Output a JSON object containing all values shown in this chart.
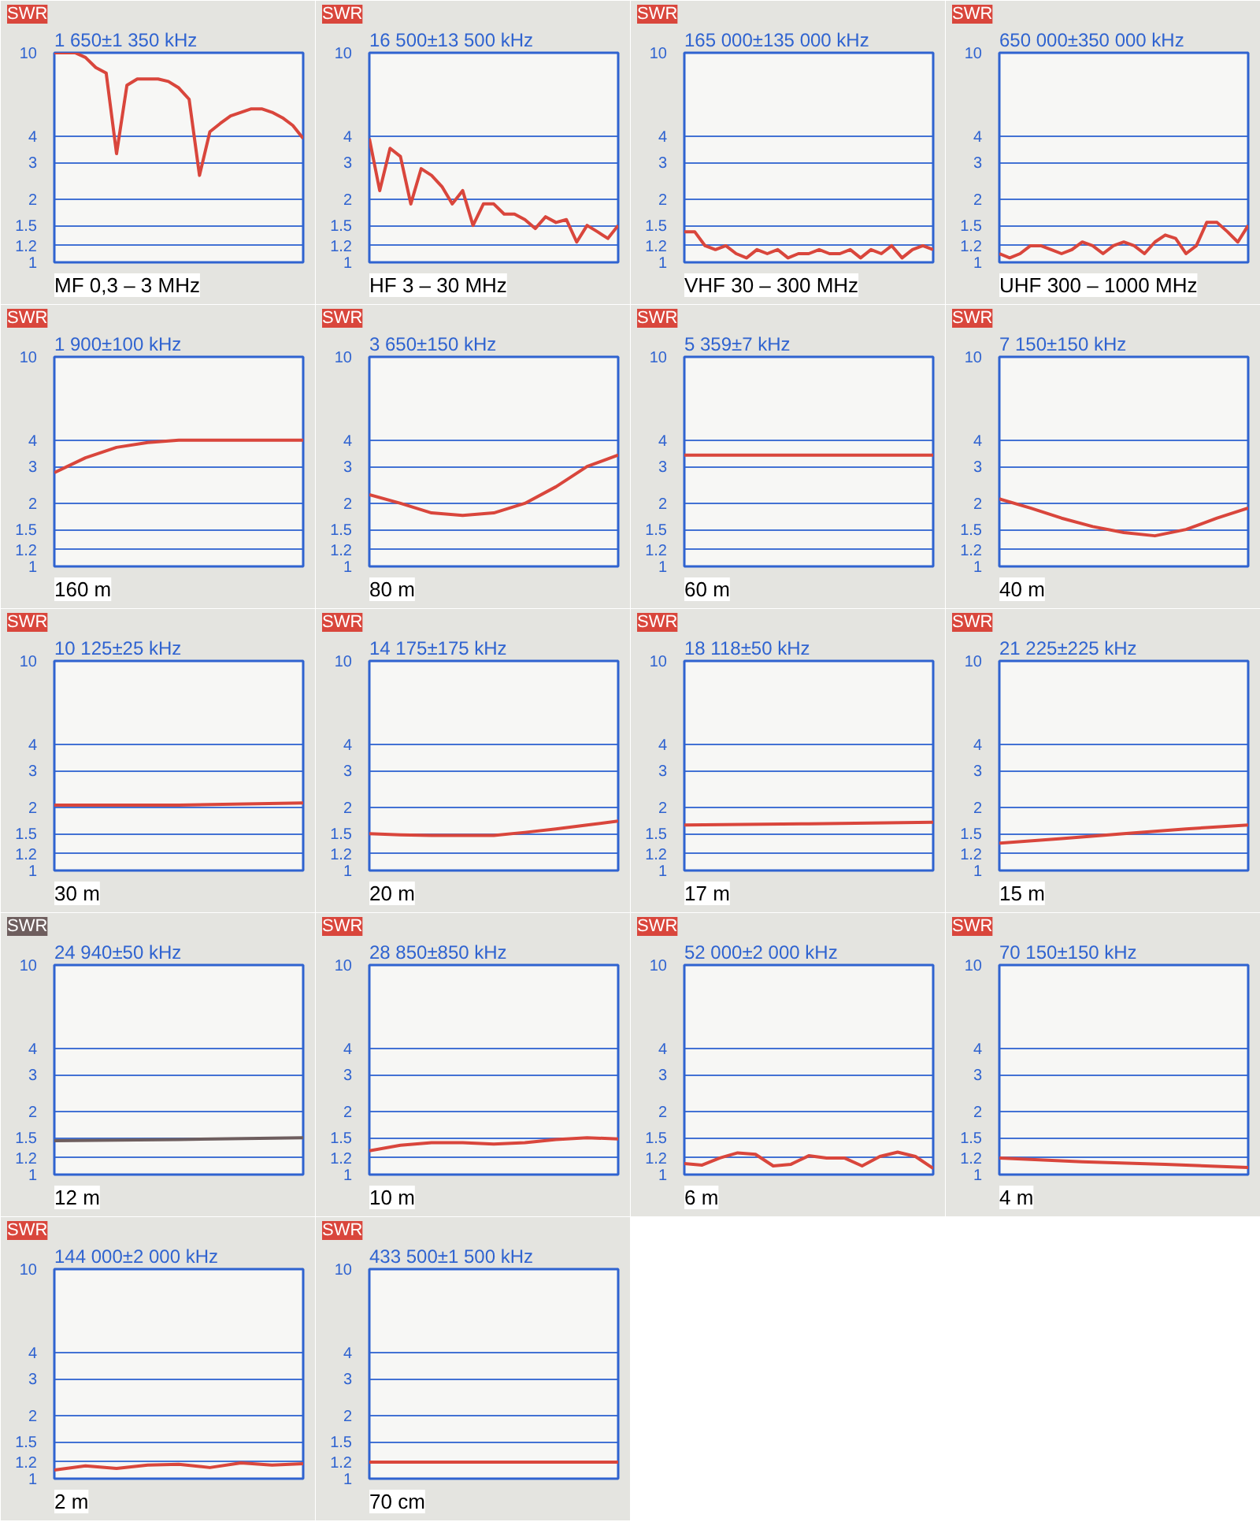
{
  "chart_data": [
    {
      "type": "line",
      "title": "1 650±1 350 kHz",
      "ylabel": "SWR",
      "annotations": [
        "MF 0,3 – 3 MHz"
      ],
      "categories": [
        null,
        null,
        null,
        null,
        null,
        null,
        null,
        null,
        null,
        null,
        null,
        null,
        null,
        null,
        null,
        null,
        null,
        null,
        null,
        null,
        null,
        null,
        null,
        null,
        null
      ],
      "series": [
        {
          "color": "#d9463c",
          "values": [
            10,
            10,
            10,
            9.5,
            8.5,
            8,
            3.3,
            7,
            7.5,
            7.5,
            7.5,
            7.3,
            6.8,
            6,
            2.6,
            4.2,
            4.6,
            5,
            5.2,
            5.4,
            5.4,
            5.2,
            4.9,
            4.5,
            3.9
          ]
        }
      ],
      "ylim": [
        1,
        10
      ],
      "yticks": [
        1,
        1.2,
        1.5,
        2,
        3,
        4,
        10
      ],
      "grid": "y",
      "tick_labels": "y",
      "log": true
    },
    {
      "type": "line",
      "title": "16 500±13 500 kHz",
      "ylabel": "SWR",
      "annotations": [
        "HF 3 – 30 MHz"
      ],
      "categories": [
        null,
        null,
        null,
        null,
        null,
        null,
        null,
        null,
        null,
        null,
        null,
        null,
        null,
        null,
        null,
        null,
        null,
        null,
        null,
        null,
        null,
        null,
        null,
        null,
        null
      ],
      "series": [
        {
          "color": "#d9463c",
          "values": [
            3.9,
            2.2,
            3.5,
            3.2,
            1.9,
            2.8,
            2.6,
            2.3,
            1.9,
            2.2,
            1.5,
            1.9,
            1.9,
            1.7,
            1.7,
            1.6,
            1.45,
            1.65,
            1.55,
            1.6,
            1.25,
            1.5,
            1.4,
            1.3,
            1.5
          ]
        }
      ],
      "ylim": [
        1,
        10
      ],
      "yticks": [
        1,
        1.2,
        1.5,
        2,
        3,
        4,
        10
      ],
      "grid": "y",
      "tick_labels": "y",
      "log": true
    },
    {
      "type": "line",
      "title": "165 000±135 000 kHz",
      "ylabel": "SWR",
      "annotations": [
        "VHF 30 – 300 MHz"
      ],
      "categories": [
        null,
        null,
        null,
        null,
        null,
        null,
        null,
        null,
        null,
        null,
        null,
        null,
        null,
        null,
        null,
        null,
        null,
        null,
        null,
        null,
        null,
        null,
        null,
        null,
        null
      ],
      "series": [
        {
          "color": "#d9463c",
          "values": [
            1.4,
            1.4,
            1.2,
            1.15,
            1.2,
            1.1,
            1.05,
            1.15,
            1.1,
            1.15,
            1.05,
            1.1,
            1.1,
            1.15,
            1.1,
            1.1,
            1.15,
            1.05,
            1.15,
            1.1,
            1.2,
            1.05,
            1.15,
            1.2,
            1.15
          ]
        }
      ],
      "ylim": [
        1,
        10
      ],
      "yticks": [
        1,
        1.2,
        1.5,
        2,
        3,
        4,
        10
      ],
      "grid": "y",
      "tick_labels": "y",
      "log": true
    },
    {
      "type": "line",
      "title": "650 000±350 000 kHz",
      "ylabel": "SWR",
      "annotations": [
        "UHF 300 – 1000 MHz"
      ],
      "categories": [
        null,
        null,
        null,
        null,
        null,
        null,
        null,
        null,
        null,
        null,
        null,
        null,
        null,
        null,
        null,
        null,
        null,
        null,
        null,
        null,
        null,
        null,
        null,
        null,
        null
      ],
      "series": [
        {
          "color": "#d9463c",
          "values": [
            1.1,
            1.05,
            1.1,
            1.2,
            1.2,
            1.15,
            1.1,
            1.15,
            1.25,
            1.2,
            1.1,
            1.2,
            1.25,
            1.2,
            1.1,
            1.25,
            1.35,
            1.3,
            1.1,
            1.2,
            1.55,
            1.55,
            1.4,
            1.25,
            1.5
          ]
        }
      ],
      "ylim": [
        1,
        10
      ],
      "yticks": [
        1,
        1.2,
        1.5,
        2,
        3,
        4,
        10
      ],
      "grid": "y",
      "tick_labels": "y",
      "log": true
    },
    {
      "type": "line",
      "title": "1 900±100 kHz",
      "ylabel": "SWR",
      "annotations": [
        "160 m"
      ],
      "categories": [
        null,
        null,
        null,
        null,
        null,
        null,
        null,
        null,
        null
      ],
      "series": [
        {
          "color": "#d9463c",
          "values": [
            2.8,
            3.3,
            3.7,
            3.9,
            4,
            4,
            4,
            4,
            4
          ]
        }
      ],
      "ylim": [
        1,
        10
      ],
      "yticks": [
        1,
        1.2,
        1.5,
        2,
        3,
        4,
        10
      ],
      "grid": "y",
      "tick_labels": "y",
      "log": true
    },
    {
      "type": "line",
      "title": "3 650±150 kHz",
      "ylabel": "SWR",
      "annotations": [
        "80 m"
      ],
      "categories": [
        null,
        null,
        null,
        null,
        null,
        null,
        null,
        null,
        null
      ],
      "series": [
        {
          "color": "#d9463c",
          "values": [
            2.2,
            2,
            1.8,
            1.75,
            1.8,
            2,
            2.4,
            3,
            3.4
          ]
        }
      ],
      "ylim": [
        1,
        10
      ],
      "yticks": [
        1,
        1.2,
        1.5,
        2,
        3,
        4,
        10
      ],
      "grid": "y",
      "tick_labels": "y",
      "log": true
    },
    {
      "type": "line",
      "title": "5 359±7 kHz",
      "ylabel": "SWR",
      "annotations": [
        "60 m"
      ],
      "categories": [
        null,
        null,
        null
      ],
      "series": [
        {
          "color": "#d9463c",
          "values": [
            3.4,
            3.4,
            3.4
          ]
        }
      ],
      "ylim": [
        1,
        10
      ],
      "yticks": [
        1,
        1.2,
        1.5,
        2,
        3,
        4,
        10
      ],
      "grid": "y",
      "tick_labels": "y",
      "log": true
    },
    {
      "type": "line",
      "title": "7 150±150 kHz",
      "ylabel": "SWR",
      "annotations": [
        "40 m"
      ],
      "categories": [
        null,
        null,
        null,
        null,
        null,
        null,
        null,
        null,
        null
      ],
      "series": [
        {
          "color": "#d9463c",
          "values": [
            2.1,
            1.9,
            1.7,
            1.55,
            1.45,
            1.4,
            1.5,
            1.7,
            1.9
          ]
        }
      ],
      "ylim": [
        1,
        10
      ],
      "yticks": [
        1,
        1.2,
        1.5,
        2,
        3,
        4,
        10
      ],
      "grid": "y",
      "tick_labels": "y",
      "log": true
    },
    {
      "type": "line",
      "title": "10 125±25 kHz",
      "ylabel": "SWR",
      "annotations": [
        "30 m"
      ],
      "categories": [
        null,
        null,
        null
      ],
      "series": [
        {
          "color": "#d9463c",
          "values": [
            2.05,
            2.05,
            2.1
          ]
        }
      ],
      "ylim": [
        1,
        10
      ],
      "yticks": [
        1,
        1.2,
        1.5,
        2,
        3,
        4,
        10
      ],
      "grid": "y",
      "tick_labels": "y",
      "log": true
    },
    {
      "type": "line",
      "title": "14 175±175 kHz",
      "ylabel": "SWR",
      "annotations": [
        "20 m"
      ],
      "categories": [
        null,
        null,
        null,
        null,
        null,
        null,
        null,
        null,
        null
      ],
      "series": [
        {
          "color": "#d9463c",
          "values": [
            1.5,
            1.48,
            1.47,
            1.47,
            1.47,
            1.52,
            1.58,
            1.65,
            1.72
          ]
        }
      ],
      "ylim": [
        1,
        10
      ],
      "yticks": [
        1,
        1.2,
        1.5,
        2,
        3,
        4,
        10
      ],
      "grid": "y",
      "tick_labels": "y",
      "log": true
    },
    {
      "type": "line",
      "title": "18 118±50 kHz",
      "ylabel": "SWR",
      "annotations": [
        "17 m"
      ],
      "categories": [
        null,
        null,
        null
      ],
      "series": [
        {
          "color": "#d9463c",
          "values": [
            1.65,
            1.67,
            1.7
          ]
        }
      ],
      "ylim": [
        1,
        10
      ],
      "yticks": [
        1,
        1.2,
        1.5,
        2,
        3,
        4,
        10
      ],
      "grid": "y",
      "tick_labels": "y",
      "log": true
    },
    {
      "type": "line",
      "title": "21 225±225 kHz",
      "ylabel": "SWR",
      "annotations": [
        "15 m"
      ],
      "categories": [
        null,
        null,
        null,
        null,
        null
      ],
      "series": [
        {
          "color": "#d9463c",
          "values": [
            1.35,
            1.42,
            1.5,
            1.58,
            1.65
          ]
        }
      ],
      "ylim": [
        1,
        10
      ],
      "yticks": [
        1,
        1.2,
        1.5,
        2,
        3,
        4,
        10
      ],
      "grid": "y",
      "tick_labels": "y",
      "log": true
    },
    {
      "type": "line",
      "title": "24 940±50 kHz",
      "ylabel": "SWR",
      "annotations": [
        "12 m"
      ],
      "categories": [
        null,
        null,
        null
      ],
      "series": [
        {
          "color": "#6e5e5e",
          "values": [
            1.45,
            1.47,
            1.5
          ]
        }
      ],
      "ylim": [
        1,
        10
      ],
      "yticks": [
        1,
        1.2,
        1.5,
        2,
        3,
        4,
        10
      ],
      "grid": "y",
      "tick_labels": "y",
      "log": true
    },
    {
      "type": "line",
      "title": "28 850±850 kHz",
      "ylabel": "SWR",
      "annotations": [
        "10 m"
      ],
      "categories": [
        null,
        null,
        null,
        null,
        null,
        null,
        null,
        null,
        null
      ],
      "series": [
        {
          "color": "#d9463c",
          "values": [
            1.3,
            1.38,
            1.42,
            1.42,
            1.4,
            1.42,
            1.47,
            1.5,
            1.48
          ]
        }
      ],
      "ylim": [
        1,
        10
      ],
      "yticks": [
        1,
        1.2,
        1.5,
        2,
        3,
        4,
        10
      ],
      "grid": "y",
      "tick_labels": "y",
      "log": true
    },
    {
      "type": "line",
      "title": "52 000±2 000 kHz",
      "ylabel": "SWR",
      "annotations": [
        "6 m"
      ],
      "categories": [
        null,
        null,
        null,
        null,
        null,
        null,
        null,
        null,
        null,
        null,
        null,
        null,
        null,
        null,
        null
      ],
      "series": [
        {
          "color": "#d9463c",
          "values": [
            1.13,
            1.11,
            1.2,
            1.27,
            1.25,
            1.1,
            1.12,
            1.23,
            1.2,
            1.2,
            1.1,
            1.22,
            1.28,
            1.22,
            1.07
          ]
        }
      ],
      "ylim": [
        1,
        10
      ],
      "yticks": [
        1,
        1.2,
        1.5,
        2,
        3,
        4,
        10
      ],
      "grid": "y",
      "tick_labels": "y",
      "log": true
    },
    {
      "type": "line",
      "title": "70 150±150 kHz",
      "ylabel": "SWR",
      "annotations": [
        "4 m"
      ],
      "categories": [
        null,
        null,
        null,
        null
      ],
      "series": [
        {
          "color": "#d9463c",
          "values": [
            1.2,
            1.15,
            1.12,
            1.08
          ]
        }
      ],
      "ylim": [
        1,
        10
      ],
      "yticks": [
        1,
        1.2,
        1.5,
        2,
        3,
        4,
        10
      ],
      "grid": "y",
      "tick_labels": "y",
      "log": true
    },
    {
      "type": "line",
      "title": "144 000±2 000 kHz",
      "ylabel": "SWR",
      "annotations": [
        "2 m"
      ],
      "categories": [
        null,
        null,
        null,
        null,
        null,
        null,
        null,
        null,
        null
      ],
      "series": [
        {
          "color": "#d9463c",
          "values": [
            1.1,
            1.15,
            1.12,
            1.16,
            1.17,
            1.13,
            1.19,
            1.16,
            1.18
          ]
        }
      ],
      "ylim": [
        1,
        10
      ],
      "yticks": [
        1,
        1.2,
        1.5,
        2,
        3,
        4,
        10
      ],
      "grid": "y",
      "tick_labels": "y",
      "log": true
    },
    {
      "type": "line",
      "title": "433 500±1 500 kHz",
      "ylabel": "SWR",
      "annotations": [
        "70 cm"
      ],
      "categories": [
        null,
        null,
        null
      ],
      "series": [
        {
          "color": "#d9463c",
          "values": [
            1.2,
            1.2,
            1.2
          ]
        }
      ],
      "ylim": [
        1,
        10
      ],
      "yticks": [
        1,
        1.2,
        1.5,
        2,
        3,
        4,
        10
      ],
      "grid": "y",
      "tick_labels": "y",
      "log": true
    }
  ]
}
